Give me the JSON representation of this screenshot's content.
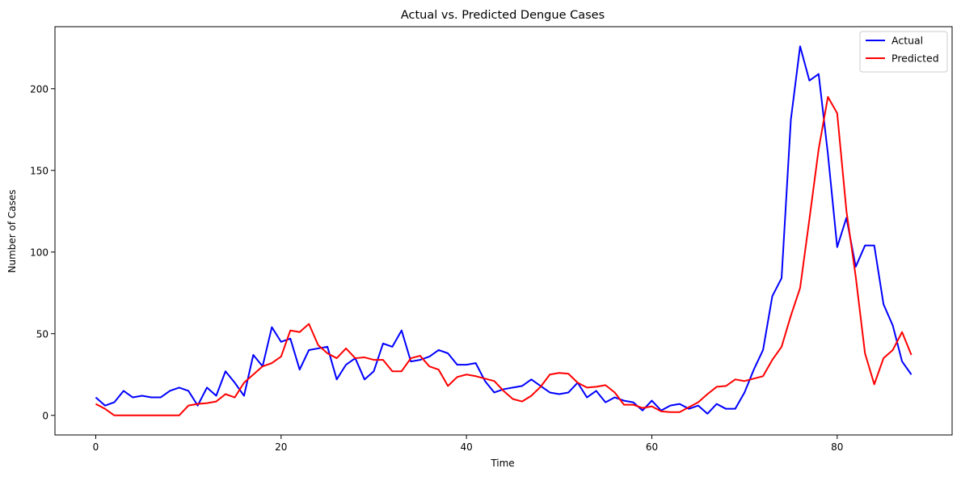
{
  "chart_data": {
    "type": "line",
    "title": "Actual vs. Predicted Dengue Cases",
    "xlabel": "Time",
    "ylabel": "Number of Cases",
    "xlim": [
      -4.4,
      92.4
    ],
    "ylim": [
      -12,
      238
    ],
    "xticks": [
      0,
      20,
      40,
      60,
      80
    ],
    "yticks": [
      0,
      50,
      100,
      150,
      200
    ],
    "grid": false,
    "legend_position": "top-right",
    "series": [
      {
        "name": "Actual",
        "color": "#0000ff",
        "values": [
          11,
          6,
          8,
          15,
          11,
          12,
          11,
          11,
          15,
          17,
          15,
          6,
          17,
          12,
          27,
          20,
          12,
          37,
          30,
          54,
          45,
          47,
          28,
          40,
          41,
          42,
          22,
          31,
          35,
          22,
          27,
          44,
          42,
          52,
          33,
          34,
          36,
          40,
          38,
          31,
          31,
          32,
          21,
          14,
          16,
          17,
          18,
          22,
          18,
          14,
          13,
          14,
          20,
          11,
          15,
          8,
          11,
          9,
          8,
          3,
          9,
          3,
          6,
          7,
          4,
          6,
          1,
          7,
          4,
          4,
          14,
          28,
          40,
          73,
          84,
          181,
          226,
          205,
          209,
          160,
          103,
          121,
          91,
          104,
          104,
          68,
          55,
          33,
          25
        ]
      },
      {
        "name": "Predicted",
        "color": "#ff0000",
        "values": [
          7,
          4,
          0,
          0,
          0,
          0,
          0,
          0,
          0,
          0,
          6,
          7,
          7.5,
          8.5,
          13,
          11,
          20,
          25,
          30,
          32,
          36,
          52,
          51,
          56,
          43,
          38,
          35,
          41,
          35,
          35.5,
          34,
          34,
          27,
          27,
          35,
          36.5,
          30,
          28,
          18,
          23.5,
          25,
          24,
          22.5,
          21,
          15,
          10,
          8.5,
          12,
          17.5,
          25,
          26,
          25.5,
          20,
          17,
          17.5,
          18.5,
          14,
          6.5,
          6.5,
          4.5,
          5.5,
          2.5,
          2,
          2,
          5,
          8,
          13,
          17.5,
          18,
          22,
          21,
          22.5,
          24,
          34,
          42,
          61,
          78,
          120,
          163,
          195,
          185,
          125,
          85,
          38,
          19,
          35,
          40,
          51,
          37
        ]
      }
    ]
  }
}
